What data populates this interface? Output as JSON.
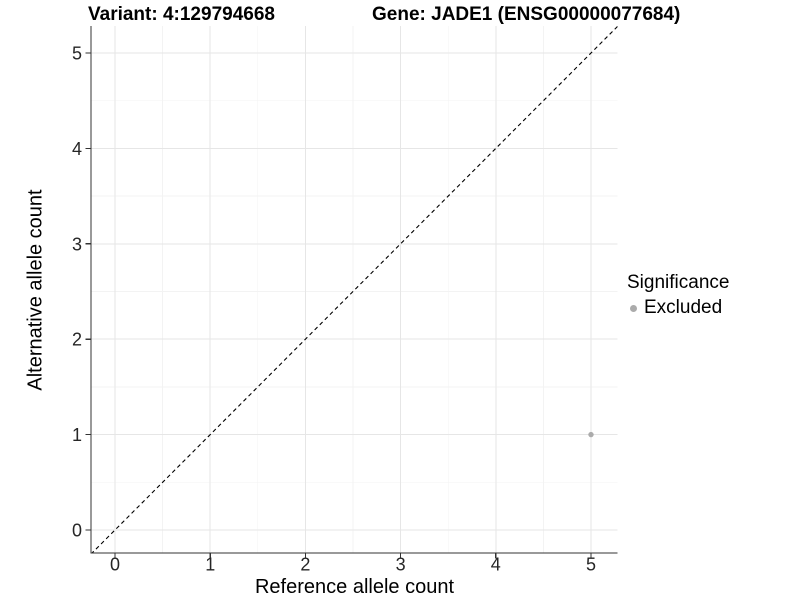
{
  "header": {
    "variant_title": "Variant: 4:129794668",
    "gene_title": "Gene: JADE1 (ENSG00000077684)"
  },
  "chart_data": {
    "type": "scatter",
    "title": "",
    "xlabel": "Reference allele count",
    "ylabel": "Alternative allele count",
    "xlim": [
      -0.26,
      5.29
    ],
    "ylim": [
      -0.26,
      5.29
    ],
    "x_ticks": [
      0,
      1,
      2,
      3,
      4,
      5
    ],
    "y_ticks": [
      0,
      1,
      2,
      3,
      4,
      5
    ],
    "grid": "major-and-minor",
    "minor_interval": 0.5,
    "identity_line": {
      "equation": "y = x",
      "style": "dashed",
      "color": "#000000"
    },
    "points": [
      {
        "x": 5,
        "y": 1,
        "significance": "Excluded",
        "color": "#ababab"
      }
    ],
    "legend": {
      "title": "Significance",
      "position": "right",
      "items": [
        {
          "label": "Excluded",
          "color": "#ababab",
          "marker": "dot"
        }
      ]
    }
  },
  "colors": {
    "background": "#ffffff",
    "grid_major": "#e6e6e6",
    "grid_minor": "#f3f3f3",
    "axis_line": "#333333",
    "tick_mark": "#333333",
    "tick_text": "#262626",
    "point": "#ababab",
    "identity_line": "#000000"
  }
}
